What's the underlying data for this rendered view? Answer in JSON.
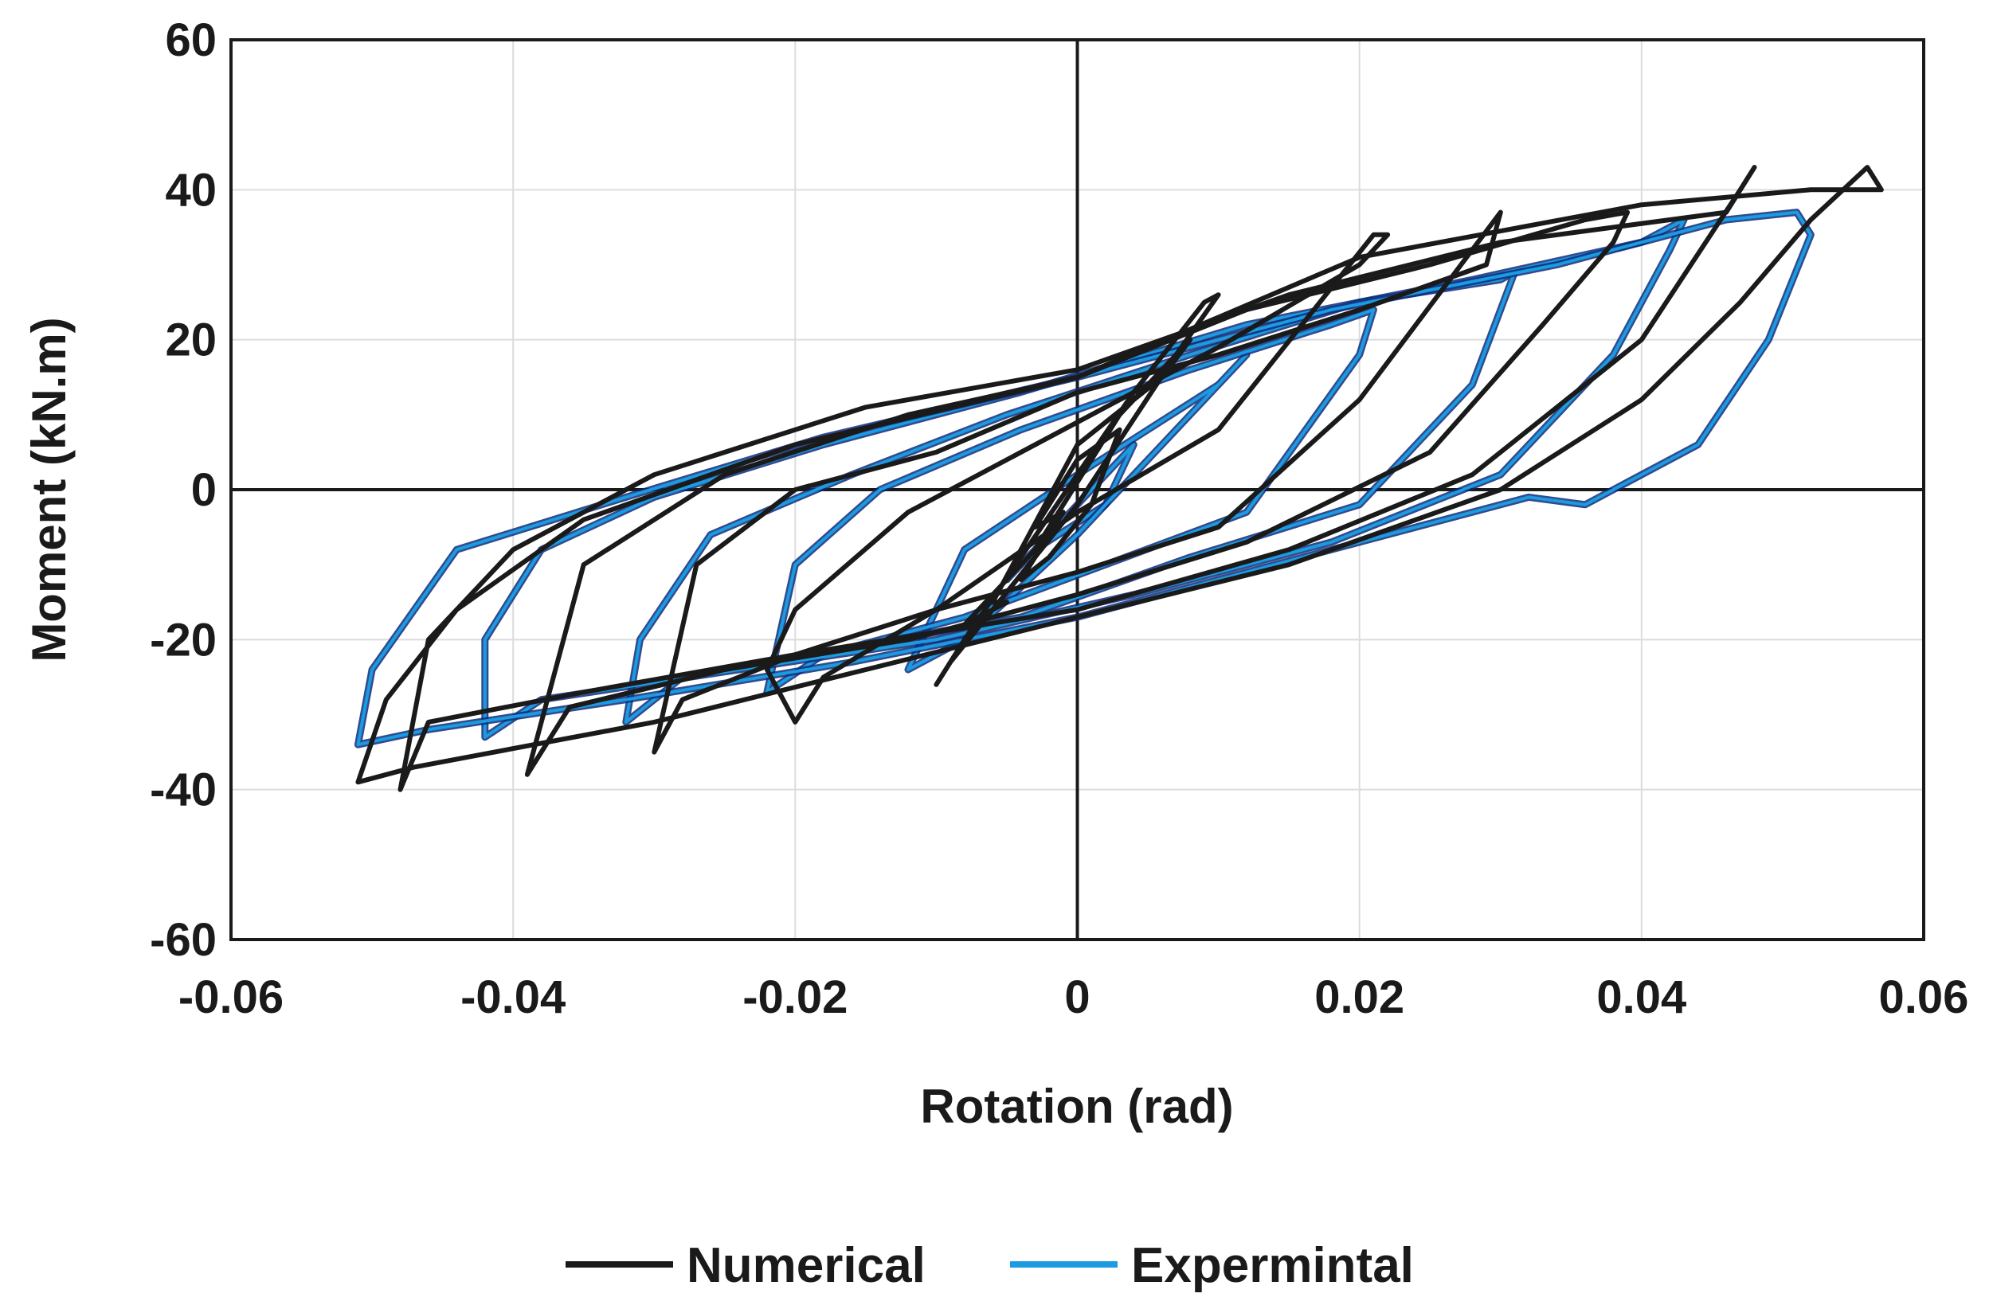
{
  "chart_data": {
    "type": "line",
    "title": "",
    "xlabel": "Rotation (rad)",
    "ylabel": "Moment (kN.m)",
    "xlim": [
      -0.06,
      0.06
    ],
    "ylim": [
      -60,
      60
    ],
    "x_ticks": [
      -0.06,
      -0.04,
      -0.02,
      0,
      0.02,
      0.04,
      0.06
    ],
    "x_tick_labels": [
      "-0.06",
      "-0.04",
      "-0.02",
      "0",
      "0.02",
      "0.04",
      "0.06"
    ],
    "y_ticks": [
      -60,
      -40,
      -20,
      0,
      20,
      40,
      60
    ],
    "y_tick_labels": [
      "-60",
      "-40",
      "-20",
      "0",
      "20",
      "40",
      "60"
    ],
    "grid": true,
    "legend": {
      "placement": "bottom-center"
    },
    "series": [
      {
        "name": "Numerical",
        "color": "#1a1a1a",
        "loops": [
          [
            [
              -0.003,
              -5
            ],
            [
              0.0,
              4
            ],
            [
              0.003,
              8
            ],
            [
              0.001,
              -2
            ],
            [
              -0.002,
              -9
            ],
            [
              -0.004,
              -12
            ],
            [
              -0.001,
              -3
            ],
            [
              -0.003,
              -5
            ]
          ],
          [
            [
              -0.006,
              -15
            ],
            [
              0.0,
              6
            ],
            [
              0.006,
              15
            ],
            [
              0.008,
              20
            ],
            [
              0.003,
              10
            ],
            [
              -0.003,
              -8
            ],
            [
              -0.008,
              -18
            ],
            [
              -0.005,
              -15
            ],
            [
              -0.006,
              -15
            ]
          ],
          [
            [
              -0.01,
              -26
            ],
            [
              -0.008,
              -20
            ],
            [
              0.004,
              13
            ],
            [
              0.009,
              25
            ],
            [
              0.01,
              26
            ],
            [
              0.007,
              18
            ],
            [
              0.0,
              -2
            ],
            [
              -0.009,
              -23
            ],
            [
              -0.01,
              -26
            ]
          ],
          [
            [
              -0.02,
              -31
            ],
            [
              -0.018,
              -25
            ],
            [
              -0.01,
              -16
            ],
            [
              0.0,
              -3
            ],
            [
              0.01,
              8
            ],
            [
              0.021,
              34
            ],
            [
              0.022,
              34
            ],
            [
              0.02,
              30
            ],
            [
              0.01,
              19
            ],
            [
              0.0,
              9
            ],
            [
              -0.012,
              -3
            ],
            [
              -0.02,
              -16
            ],
            [
              -0.022,
              -24
            ],
            [
              -0.02,
              -31
            ]
          ],
          [
            [
              -0.03,
              -35
            ],
            [
              -0.028,
              -28
            ],
            [
              -0.02,
              -22
            ],
            [
              -0.01,
              -16
            ],
            [
              0.0,
              -11
            ],
            [
              0.01,
              -5
            ],
            [
              0.02,
              12
            ],
            [
              0.028,
              32
            ],
            [
              0.03,
              37
            ],
            [
              0.029,
              30
            ],
            [
              0.02,
              24
            ],
            [
              0.01,
              18
            ],
            [
              0.0,
              13
            ],
            [
              -0.01,
              5
            ],
            [
              -0.02,
              0
            ],
            [
              -0.027,
              -10
            ],
            [
              -0.03,
              -35
            ]
          ],
          [
            [
              -0.039,
              -38
            ],
            [
              -0.036,
              -29
            ],
            [
              -0.025,
              -24
            ],
            [
              -0.012,
              -20
            ],
            [
              0.0,
              -14
            ],
            [
              0.012,
              -7
            ],
            [
              0.025,
              5
            ],
            [
              0.033,
              22
            ],
            [
              0.038,
              33
            ],
            [
              0.039,
              37
            ],
            [
              0.036,
              36
            ],
            [
              0.025,
              30
            ],
            [
              0.012,
              24
            ],
            [
              0.0,
              15
            ],
            [
              -0.012,
              10
            ],
            [
              -0.025,
              2
            ],
            [
              -0.035,
              -10
            ],
            [
              -0.039,
              -38
            ]
          ],
          [
            [
              -0.048,
              -40
            ],
            [
              -0.046,
              -31
            ],
            [
              -0.035,
              -27
            ],
            [
              -0.02,
              -22
            ],
            [
              0.0,
              -16
            ],
            [
              0.015,
              -8
            ],
            [
              0.028,
              2
            ],
            [
              0.04,
              20
            ],
            [
              0.047,
              40
            ],
            [
              0.048,
              43
            ],
            [
              0.046,
              37
            ],
            [
              0.03,
              33
            ],
            [
              0.015,
              26
            ],
            [
              0.0,
              16
            ],
            [
              -0.015,
              11
            ],
            [
              -0.03,
              2
            ],
            [
              -0.04,
              -8
            ],
            [
              -0.046,
              -20
            ],
            [
              -0.048,
              -40
            ]
          ],
          [
            [
              -0.051,
              -39
            ],
            [
              -0.047,
              -37
            ],
            [
              -0.03,
              -31
            ],
            [
              -0.015,
              -24
            ],
            [
              0.0,
              -17
            ],
            [
              0.015,
              -10
            ],
            [
              0.03,
              0
            ],
            [
              0.04,
              12
            ],
            [
              0.047,
              25
            ],
            [
              0.052,
              36
            ],
            [
              0.056,
              43
            ],
            [
              0.057,
              40
            ],
            [
              0.052,
              40
            ],
            [
              0.04,
              38
            ],
            [
              0.02,
              31
            ],
            [
              0.0,
              15
            ],
            [
              -0.02,
              6
            ],
            [
              -0.035,
              -4
            ],
            [
              -0.044,
              -16
            ],
            [
              -0.049,
              -28
            ],
            [
              -0.051,
              -39
            ]
          ]
        ]
      },
      {
        "name": "Expermintal",
        "color": "#1b9be0",
        "loops": [
          [
            [
              -0.005,
              -12
            ],
            [
              0.0,
              -2
            ],
            [
              0.004,
              6
            ],
            [
              0.002,
              -2
            ],
            [
              -0.003,
              -8
            ],
            [
              -0.005,
              -12
            ]
          ],
          [
            [
              -0.012,
              -24
            ],
            [
              -0.008,
              -20
            ],
            [
              0.0,
              -6
            ],
            [
              0.008,
              10
            ],
            [
              0.012,
              18
            ],
            [
              0.01,
              14
            ],
            [
              0.0,
              2
            ],
            [
              -0.008,
              -8
            ],
            [
              -0.012,
              -24
            ]
          ],
          [
            [
              -0.022,
              -27
            ],
            [
              -0.018,
              -22
            ],
            [
              -0.008,
              -17
            ],
            [
              0.002,
              -10
            ],
            [
              0.012,
              -3
            ],
            [
              0.02,
              18
            ],
            [
              0.021,
              24
            ],
            [
              0.018,
              22
            ],
            [
              0.008,
              16
            ],
            [
              -0.004,
              8
            ],
            [
              -0.014,
              0
            ],
            [
              -0.02,
              -10
            ],
            [
              -0.022,
              -27
            ]
          ],
          [
            [
              -0.032,
              -31
            ],
            [
              -0.028,
              -25
            ],
            [
              -0.016,
              -21
            ],
            [
              -0.004,
              -17
            ],
            [
              0.008,
              -9
            ],
            [
              0.02,
              -2
            ],
            [
              0.028,
              14
            ],
            [
              0.031,
              29
            ],
            [
              0.03,
              28
            ],
            [
              0.02,
              25
            ],
            [
              0.008,
              18
            ],
            [
              -0.005,
              10
            ],
            [
              -0.016,
              2
            ],
            [
              -0.026,
              -6
            ],
            [
              -0.031,
              -20
            ],
            [
              -0.032,
              -31
            ]
          ],
          [
            [
              -0.042,
              -33
            ],
            [
              -0.038,
              -28
            ],
            [
              -0.024,
              -24
            ],
            [
              -0.01,
              -20
            ],
            [
              0.004,
              -14
            ],
            [
              0.018,
              -7
            ],
            [
              0.03,
              2
            ],
            [
              0.038,
              18
            ],
            [
              0.042,
              32
            ],
            [
              0.043,
              36
            ],
            [
              0.04,
              33
            ],
            [
              0.028,
              28
            ],
            [
              0.012,
              22
            ],
            [
              -0.004,
              13
            ],
            [
              -0.018,
              6
            ],
            [
              -0.03,
              -1
            ],
            [
              -0.038,
              -8
            ],
            [
              -0.042,
              -20
            ],
            [
              -0.042,
              -33
            ]
          ],
          [
            [
              -0.051,
              -34
            ],
            [
              -0.046,
              -32
            ],
            [
              -0.032,
              -28
            ],
            [
              -0.016,
              -23
            ],
            [
              0.0,
              -17
            ],
            [
              0.016,
              -9
            ],
            [
              0.032,
              -1
            ],
            [
              0.036,
              -2
            ],
            [
              0.044,
              6
            ],
            [
              0.049,
              20
            ],
            [
              0.052,
              34
            ],
            [
              0.051,
              37
            ],
            [
              0.046,
              36
            ],
            [
              0.034,
              30
            ],
            [
              0.018,
              24
            ],
            [
              0.0,
              15
            ],
            [
              -0.018,
              7
            ],
            [
              -0.032,
              -1
            ],
            [
              -0.044,
              -8
            ],
            [
              -0.05,
              -24
            ],
            [
              -0.051,
              -34
            ]
          ]
        ]
      }
    ]
  }
}
